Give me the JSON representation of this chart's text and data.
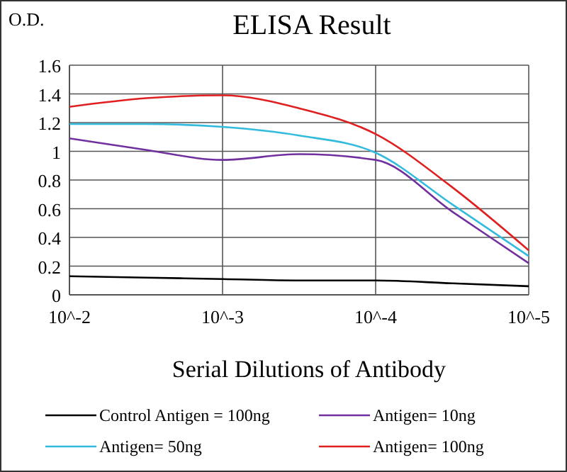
{
  "chart_data": {
    "type": "line",
    "title": "ELISA Result",
    "ylabel": "O.D.",
    "xlabel": "Serial Dilutions  of Antibody",
    "categories": [
      "10^-2",
      null,
      "10^-3",
      null,
      "10^-4",
      null,
      "10^-5"
    ],
    "ylim": [
      0,
      1.6
    ],
    "yticks": [
      0,
      0.2,
      0.4,
      0.6,
      0.8,
      1,
      1.2,
      1.4,
      1.6
    ],
    "grid": true,
    "legend": "bottom",
    "marker": "none",
    "line_style": "solid",
    "series": [
      {
        "name": "Control Antigen = 100ng",
        "color": "#000000",
        "values": [
          0.13,
          0.12,
          0.11,
          0.1,
          0.1,
          0.08,
          0.06
        ]
      },
      {
        "name": "Antigen= 10ng",
        "color": "#7030a0",
        "values": [
          1.09,
          1.01,
          0.94,
          0.98,
          0.94,
          0.58,
          0.22
        ]
      },
      {
        "name": "Antigen= 50ng",
        "color": "#33bbdd",
        "values": [
          1.19,
          1.19,
          1.17,
          1.11,
          0.99,
          0.63,
          0.27
        ]
      },
      {
        "name": "Antigen= 100ng",
        "color": "#e02020",
        "values": [
          1.31,
          1.37,
          1.39,
          1.3,
          1.12,
          0.75,
          0.31
        ]
      }
    ]
  }
}
